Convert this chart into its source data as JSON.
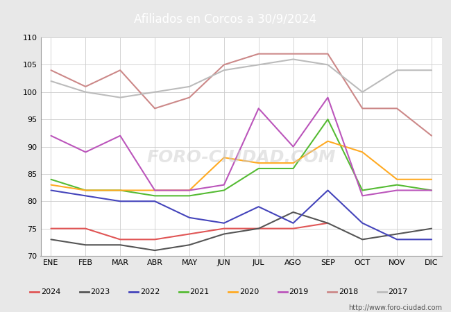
{
  "title": "Afiliados en Corcos a 30/9/2024",
  "ylim": [
    70,
    110
  ],
  "yticks": [
    70,
    75,
    80,
    85,
    90,
    95,
    100,
    105,
    110
  ],
  "months": [
    "ENE",
    "FEB",
    "MAR",
    "ABR",
    "MAY",
    "JUN",
    "JUL",
    "AGO",
    "SEP",
    "OCT",
    "NOV",
    "DIC"
  ],
  "series": {
    "2024": {
      "color": "#e05555",
      "values": [
        75,
        75,
        73,
        73,
        74,
        75,
        75,
        75,
        76,
        null,
        null,
        null
      ]
    },
    "2023": {
      "color": "#555555",
      "values": [
        73,
        72,
        72,
        71,
        72,
        74,
        75,
        78,
        76,
        73,
        74,
        75
      ]
    },
    "2022": {
      "color": "#4444bb",
      "values": [
        82,
        81,
        80,
        80,
        77,
        76,
        79,
        76,
        82,
        76,
        73,
        73
      ]
    },
    "2021": {
      "color": "#55bb33",
      "values": [
        84,
        82,
        82,
        81,
        81,
        82,
        86,
        86,
        95,
        82,
        83,
        82
      ]
    },
    "2020": {
      "color": "#ffaa22",
      "values": [
        83,
        82,
        82,
        82,
        82,
        88,
        87,
        87,
        91,
        89,
        84,
        84
      ]
    },
    "2019": {
      "color": "#bb55bb",
      "values": [
        92,
        89,
        92,
        82,
        82,
        83,
        97,
        90,
        99,
        81,
        82,
        82
      ]
    },
    "2018": {
      "color": "#cc8888",
      "values": [
        104,
        101,
        104,
        97,
        99,
        105,
        107,
        107,
        107,
        97,
        97,
        92
      ]
    },
    "2017": {
      "color": "#bbbbbb",
      "values": [
        102,
        100,
        99,
        100,
        101,
        104,
        105,
        106,
        105,
        100,
        104,
        104
      ]
    }
  },
  "legend_order": [
    "2024",
    "2023",
    "2022",
    "2021",
    "2020",
    "2019",
    "2018",
    "2017"
  ],
  "watermark": "http://www.foro-ciudad.com",
  "fig_bg": "#e8e8e8",
  "plot_bg": "#ffffff",
  "header_bg": "#5588bb",
  "grid_color": "#cccccc",
  "foro_watermark": "FORO-CIUDAD.COM"
}
